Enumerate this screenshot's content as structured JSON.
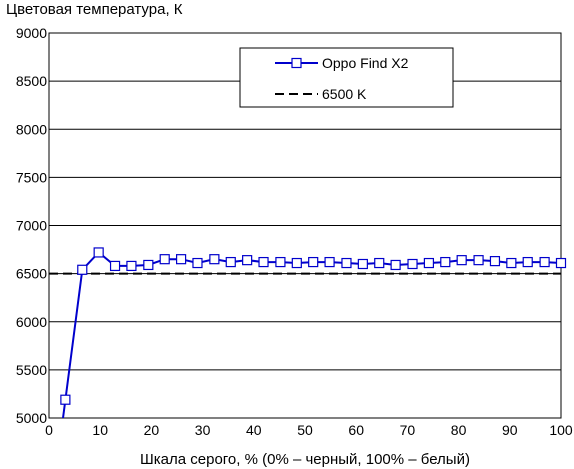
{
  "chart_data": {
    "type": "line",
    "title": "",
    "ylabel": "Цветовая температура, К",
    "xlabel": "Шкала серого, % (0% – черный, 100% – белый)",
    "xlim": [
      0,
      100
    ],
    "ylim": [
      5000,
      9000
    ],
    "x_ticks": [
      0,
      10,
      20,
      30,
      40,
      50,
      60,
      70,
      80,
      90,
      100
    ],
    "y_ticks": [
      5000,
      5500,
      6000,
      6500,
      7000,
      7500,
      8000,
      8500,
      9000
    ],
    "grid": "horizontal",
    "legend_position": "top-right",
    "series": [
      {
        "name": "Oppo Find X2",
        "color": "#0000cc",
        "marker": "open-square",
        "x": [
          3.2,
          6.5,
          9.7,
          12.9,
          16.1,
          19.4,
          22.6,
          25.8,
          29.0,
          32.3,
          35.5,
          38.7,
          41.9,
          45.2,
          48.4,
          51.6,
          54.8,
          58.1,
          61.3,
          64.5,
          67.7,
          71.0,
          74.2,
          77.4,
          80.6,
          83.9,
          87.1,
          90.3,
          93.5,
          96.8,
          100
        ],
        "y": [
          5190,
          6540,
          6720,
          6580,
          6580,
          6590,
          6650,
          6650,
          6610,
          6650,
          6620,
          6640,
          6620,
          6620,
          6610,
          6620,
          6620,
          6610,
          6600,
          6610,
          6590,
          6600,
          6610,
          6620,
          6640,
          6640,
          6630,
          6610,
          6620,
          6620,
          6610
        ]
      },
      {
        "name": "6500 K",
        "color": "#000000",
        "style": "dashed",
        "x": [
          0,
          100
        ],
        "y": [
          6500,
          6500
        ]
      }
    ]
  }
}
